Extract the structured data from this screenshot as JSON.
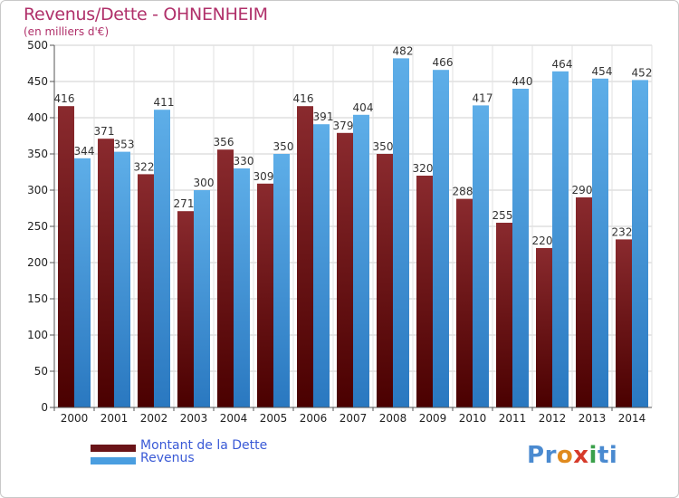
{
  "header": {
    "title": "Revenus/Dette - OHNENHEIM",
    "subtitle": "(en milliers d'€)"
  },
  "chart_data": {
    "type": "bar",
    "categories": [
      "2000",
      "2001",
      "2002",
      "2003",
      "2004",
      "2005",
      "2006",
      "2007",
      "2008",
      "2009",
      "2010",
      "2011",
      "2012",
      "2013",
      "2014"
    ],
    "series": [
      {
        "name": "Montant de la Dette",
        "color": "#7a1e22",
        "values": [
          416,
          371,
          322,
          271,
          356,
          309,
          416,
          379,
          350,
          320,
          288,
          255,
          220,
          290,
          232
        ]
      },
      {
        "name": "Revenus",
        "color": "#4a9ee0",
        "values": [
          344,
          353,
          411,
          300,
          330,
          350,
          391,
          404,
          482,
          466,
          417,
          440,
          464,
          454,
          452
        ]
      }
    ],
    "ylim": [
      0,
      500
    ],
    "yticks": [
      0,
      50,
      100,
      150,
      200,
      250,
      300,
      350,
      400,
      450,
      500
    ],
    "grid": true,
    "legend": "bottom-left",
    "xlabel": "",
    "ylabel": ""
  },
  "logo": {
    "text": "Proxiti",
    "letters": [
      {
        "ch": "P",
        "color": "#4a8ad0"
      },
      {
        "ch": "r",
        "color": "#4a8ad0"
      },
      {
        "ch": "o",
        "color": "#e08a1e"
      },
      {
        "ch": "x",
        "color": "#d63a2a"
      },
      {
        "ch": "i",
        "color": "#3aa04a"
      },
      {
        "ch": "t",
        "color": "#4a8ad0"
      },
      {
        "ch": "i",
        "color": "#4a8ad0"
      }
    ]
  }
}
